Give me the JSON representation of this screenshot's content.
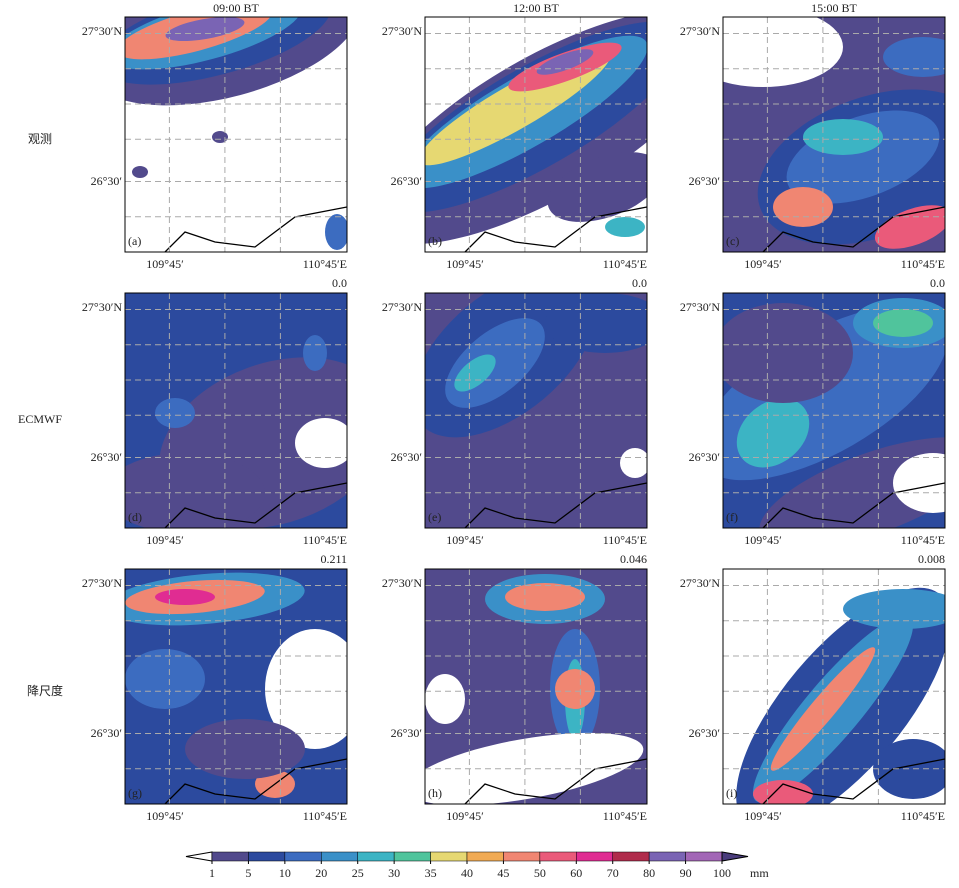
{
  "columns": [
    "09:00 BT",
    "12:00 BT",
    "15:00 BT"
  ],
  "rows": [
    "观测",
    "ECMWF",
    "降尺度"
  ],
  "axis": {
    "lat_top": "27°30′N",
    "lat_mid": "26°30′",
    "lon_left": "109°45′",
    "lon_right": "110°45′E"
  },
  "panels": [
    {
      "label": "(a)"
    },
    {
      "label": "(b)"
    },
    {
      "label": "(c)"
    },
    {
      "label": "(d)",
      "score": "0.0"
    },
    {
      "label": "(e)",
      "score": "0.0"
    },
    {
      "label": "(f)",
      "score": "0.0"
    },
    {
      "label": "(g)",
      "score": "0.211"
    },
    {
      "label": "(h)",
      "score": "0.046"
    },
    {
      "label": "(i)",
      "score": "0.008"
    }
  ],
  "colorbar": {
    "ticks": [
      1,
      5,
      10,
      20,
      25,
      30,
      35,
      40,
      45,
      50,
      60,
      70,
      80,
      90,
      100
    ],
    "colors": [
      "#524a8c",
      "#2c4a9e",
      "#3c6cc0",
      "#3a90c8",
      "#3cb4c4",
      "#50c49c",
      "#e6d872",
      "#f0aa54",
      "#f08672",
      "#ea5a7a",
      "#e02c92",
      "#b02c4c",
      "#7a64b4",
      "#a266b6"
    ],
    "unit": "mm"
  }
}
